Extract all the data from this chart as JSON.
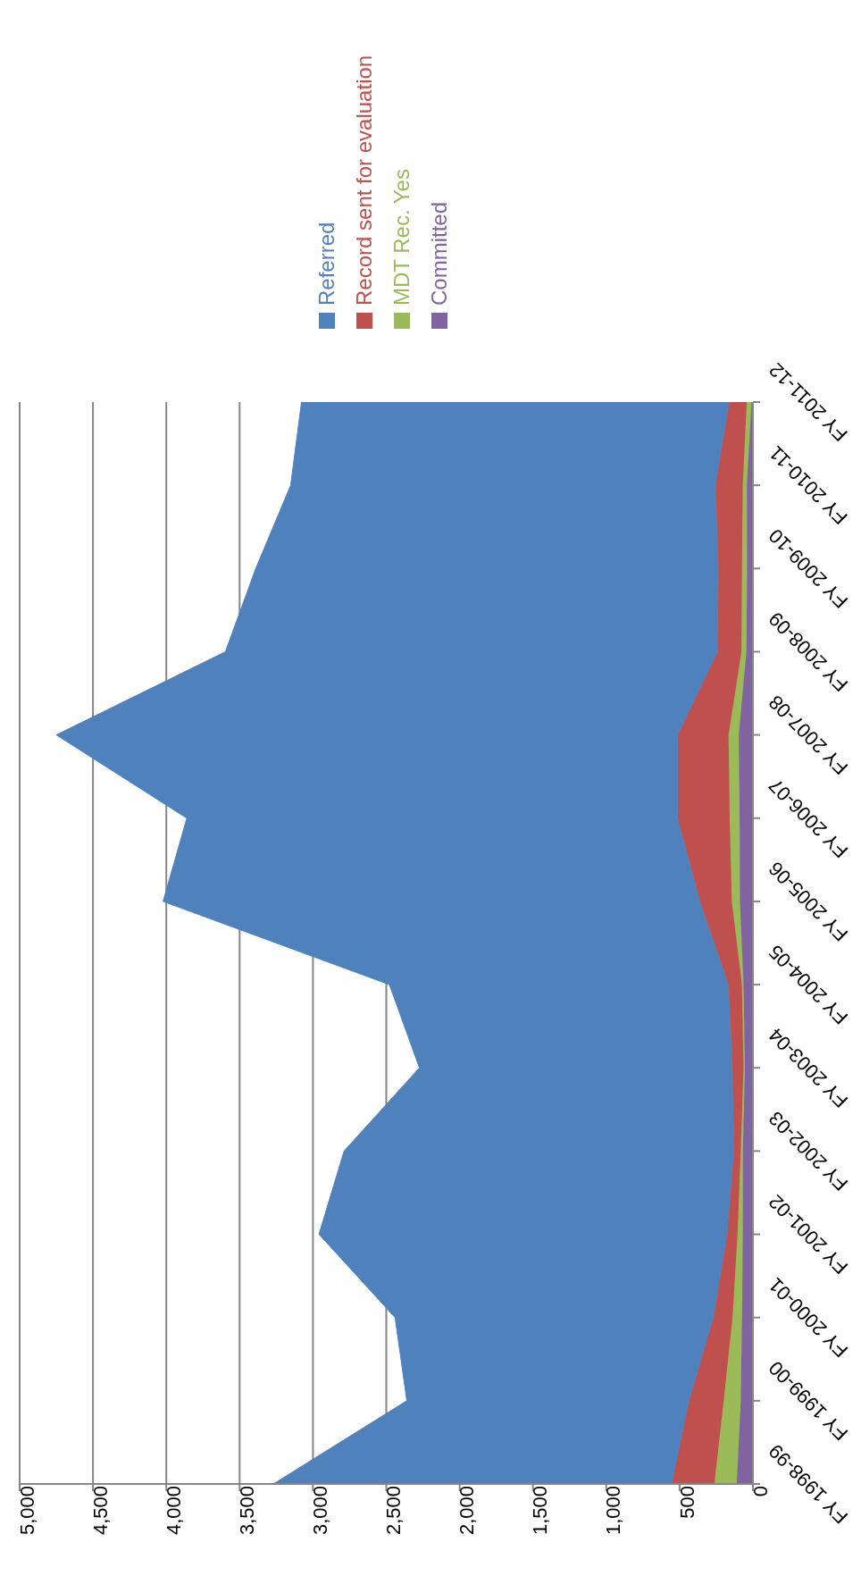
{
  "chart_data": {
    "type": "area",
    "stacked": true,
    "orientation": "horizontal",
    "categories": [
      "FY 2011-12",
      "FY 2010-11",
      "FY 2009-10",
      "FY 2008-09",
      "FY 2007-08",
      "FY 2006-07",
      "FY 2005-06",
      "FY 2004-05",
      "FY 2003-04",
      "FY 2002-03",
      "FY 2001-02",
      "FY 2000-01",
      "FY 1999-00",
      "FY 1998-99"
    ],
    "series": [
      {
        "name": "Committed",
        "color": "#8064a2",
        "values": [
          10,
          42,
          40,
          45,
          97,
          91,
          89,
          64,
          55,
          69,
          69,
          75,
          83,
          111
        ]
      },
      {
        "name": "MDT Rec. Yes",
        "color": "#9bbb59",
        "values": [
          32,
          27,
          35,
          33,
          69,
          67,
          55,
          11,
          9,
          14,
          36,
          64,
          116,
          152
        ]
      },
      {
        "name": "Record sent for evaluation",
        "color": "#c0504d",
        "values": [
          119,
          186,
          160,
          163,
          346,
          354,
          216,
          91,
          75,
          47,
          70,
          130,
          236,
          291
        ]
      },
      {
        "name": "Referred",
        "color": "#4f81bd",
        "values": [
          2917,
          2897,
          3155,
          3356,
          4238,
          3348,
          3662,
          2313,
          2135,
          2658,
          2784,
          2171,
          1925,
          2716
        ]
      }
    ],
    "xlim": [
      5000,
      0
    ],
    "xticks": [
      {
        "value": 5000,
        "label": "5,000"
      },
      {
        "value": 4500,
        "label": "4,500"
      },
      {
        "value": 4000,
        "label": "4,000"
      },
      {
        "value": 3500,
        "label": "3,500"
      },
      {
        "value": 3000,
        "label": "3,000"
      },
      {
        "value": 2500,
        "label": "2,500"
      },
      {
        "value": 2000,
        "label": "2,000"
      },
      {
        "value": 1500,
        "label": "1,500"
      },
      {
        "value": 1000,
        "label": "1,000"
      },
      {
        "value": 500,
        "label": "500"
      },
      {
        "value": 0,
        "label": "0"
      }
    ],
    "grid": "x",
    "legend": "top"
  }
}
